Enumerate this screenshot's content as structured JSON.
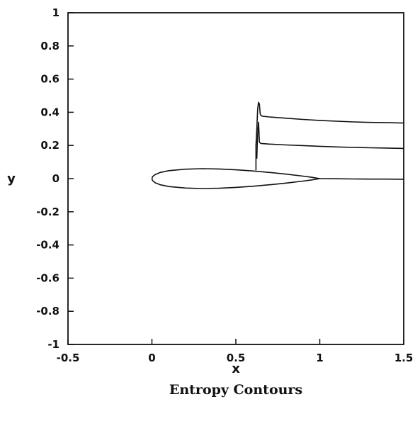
{
  "chart_data": {
    "type": "line",
    "title": "Entropy Contours",
    "xlabel": "x",
    "ylabel": "y",
    "xlim": [
      -0.5,
      1.5
    ],
    "ylim": [
      -1,
      1
    ],
    "x_ticks": [
      -0.5,
      0,
      0.5,
      1,
      1.5
    ],
    "x_tick_labels": [
      "-0.5",
      "0",
      "0.5",
      "1",
      "1.5"
    ],
    "y_ticks": [
      1,
      0.8,
      0.6,
      0.4,
      0.2,
      0,
      -0.2,
      -0.4,
      -0.6,
      -0.8,
      -1
    ],
    "y_tick_labels": [
      "1",
      "0.8",
      "0.6",
      "0.4",
      "0.2",
      "0",
      "-0.2",
      "-0.4",
      "-0.6",
      "-0.8",
      "-1"
    ],
    "grid": false,
    "series": [
      {
        "x": [
          0.0,
          0.004,
          0.02,
          0.05,
          0.1,
          0.2,
          0.3,
          0.4,
          0.5,
          0.6,
          0.7,
          0.8,
          0.9,
          0.95,
          1.0,
          0.95,
          0.9,
          0.8,
          0.7,
          0.6,
          0.5,
          0.4,
          0.3,
          0.2,
          0.1,
          0.05,
          0.02,
          0.004,
          0.0
        ],
        "y": [
          0.0,
          0.012,
          0.025,
          0.037,
          0.048,
          0.057,
          0.06,
          0.058,
          0.053,
          0.046,
          0.037,
          0.027,
          0.015,
          0.008,
          0.0,
          -0.008,
          -0.015,
          -0.027,
          -0.037,
          -0.046,
          -0.053,
          -0.058,
          -0.06,
          -0.057,
          -0.048,
          -0.037,
          -0.025,
          -0.012,
          0.0
        ]
      },
      {
        "x": [
          1.0,
          1.1,
          1.2,
          1.3,
          1.4,
          1.5
        ],
        "y": [
          0.0,
          -0.001,
          -0.002,
          -0.003,
          -0.003,
          -0.004
        ]
      },
      {
        "x": [
          0.62,
          0.62,
          0.625,
          0.63,
          0.635,
          0.64,
          0.645,
          0.65,
          0.66,
          0.7,
          0.8,
          0.9,
          1.0,
          1.1,
          1.2,
          1.3,
          1.4,
          1.5
        ],
        "y": [
          0.05,
          0.2,
          0.3,
          0.42,
          0.46,
          0.45,
          0.39,
          0.38,
          0.376,
          0.372,
          0.364,
          0.357,
          0.351,
          0.346,
          0.342,
          0.339,
          0.337,
          0.335
        ]
      },
      {
        "x": [
          0.625,
          0.628,
          0.632,
          0.635,
          0.638,
          0.64,
          0.645,
          0.65,
          0.7,
          0.8,
          0.9,
          1.0,
          1.1,
          1.2,
          1.3,
          1.4,
          1.5
        ],
        "y": [
          0.12,
          0.22,
          0.3,
          0.34,
          0.28,
          0.22,
          0.215,
          0.212,
          0.208,
          0.203,
          0.199,
          0.195,
          0.191,
          0.188,
          0.186,
          0.184,
          0.182
        ]
      }
    ]
  }
}
